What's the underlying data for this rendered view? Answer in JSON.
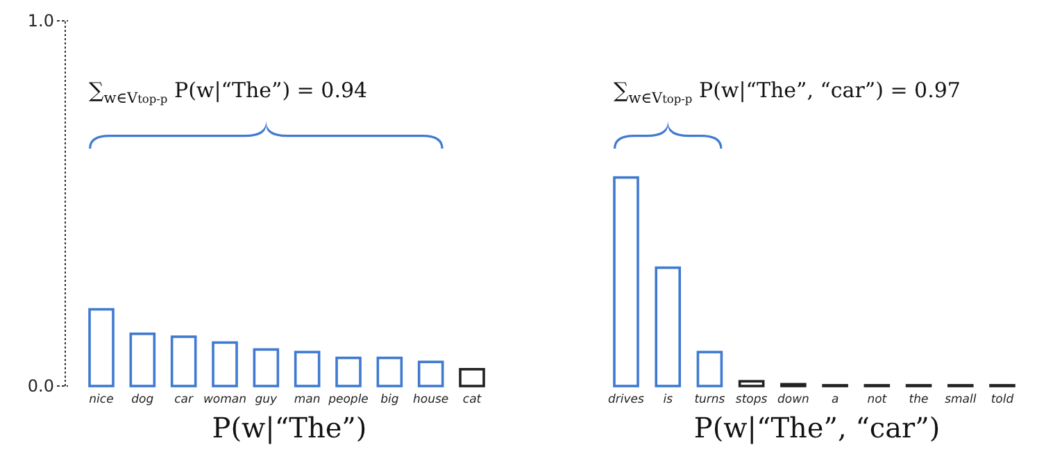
{
  "chart_data": [
    {
      "type": "bar",
      "categories": [
        "nice",
        "dog",
        "car",
        "woman",
        "guy",
        "man",
        "people",
        "big",
        "house",
        "cat"
      ],
      "values": [
        0.21,
        0.143,
        0.135,
        0.119,
        0.1,
        0.093,
        0.077,
        0.077,
        0.066,
        0.046
      ],
      "colors": [
        "#3f7ad0",
        "#3f7ad0",
        "#3f7ad0",
        "#3f7ad0",
        "#3f7ad0",
        "#3f7ad0",
        "#3f7ad0",
        "#3f7ad0",
        "#3f7ad0",
        "#222222"
      ],
      "ylim": [
        0,
        1
      ],
      "yticks": [
        {
          "value": 0,
          "label": "0.0"
        },
        {
          "value": 1,
          "label": "1.0"
        }
      ],
      "xlabel": "P(w|“The”)",
      "annotations": [
        "∑$_{w∈V}$$_{top-p}$ P(w|“The”) = 0.94"
      ]
    },
    {
      "type": "bar",
      "categories": [
        "drives",
        "is",
        "turns",
        "stops",
        "down",
        "a",
        "not",
        "the",
        "small",
        "told"
      ],
      "values": [
        0.571,
        0.324,
        0.093,
        0.013,
        0.005,
        0.002,
        0.002,
        0.002,
        0.002,
        0.002
      ],
      "colors": [
        "#3f7ad0",
        "#3f7ad0",
        "#3f7ad0",
        "#222222",
        "#222222",
        "#222222",
        "#222222",
        "#222222",
        "#222222",
        "#222222"
      ],
      "ylim": [
        0,
        1
      ],
      "tick_labels": "x",
      "xlabel": "P(w|“The”, “car”)",
      "annotations": [
        "∑$_{w∈V}$$_{top-p}$ P(w|“The”, “car”) = 0.97"
      ]
    }
  ]
}
